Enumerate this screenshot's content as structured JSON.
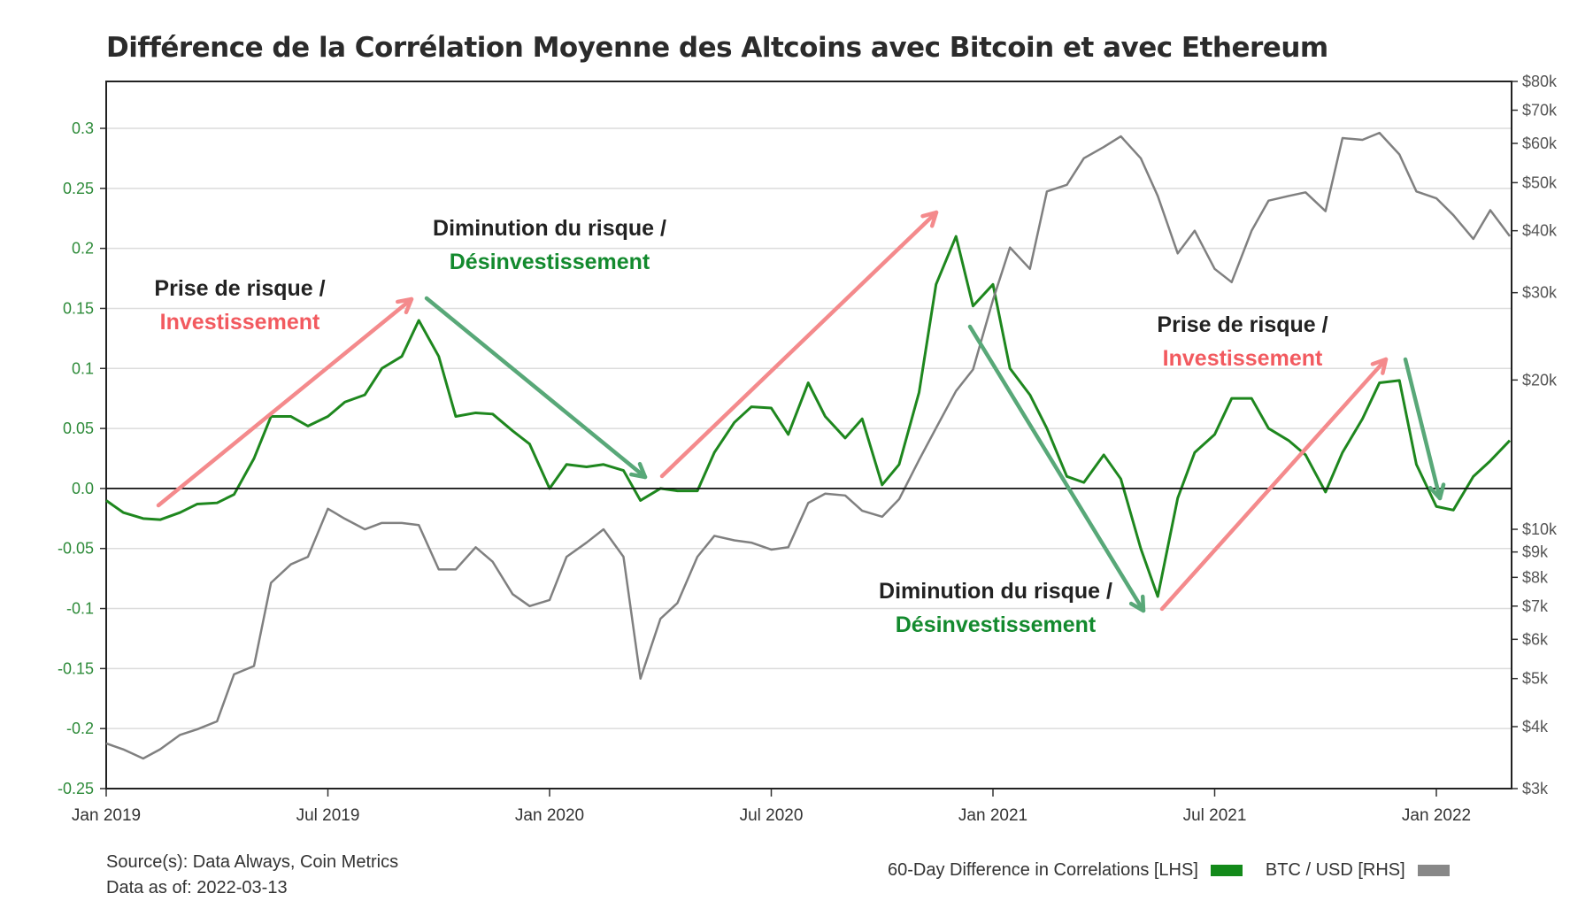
{
  "chart_data": {
    "type": "line",
    "title": "Différence de la Corrélation Moyenne des Altcoins avec Bitcoin et avec Ethereum",
    "x_ticks": [
      {
        "label": "Jan 2019",
        "date": "2019-01-01"
      },
      {
        "label": "Jul 2019",
        "date": "2019-07-01"
      },
      {
        "label": "Jan 2020",
        "date": "2020-01-01"
      },
      {
        "label": "Jul 2020",
        "date": "2020-07-01"
      },
      {
        "label": "Jan 2021",
        "date": "2021-01-01"
      },
      {
        "label": "Jul 2021",
        "date": "2021-07-01"
      },
      {
        "label": "Jan 2022",
        "date": "2022-01-01"
      }
    ],
    "xlim": [
      "2019-01-01",
      "2022-03-13"
    ],
    "y_left": {
      "lim": [
        -0.25,
        0.35
      ],
      "ticks": [
        0.3,
        0.25,
        0.2,
        0.15,
        0.1,
        0.05,
        0.0,
        -0.05,
        -0.1,
        -0.15,
        -0.2,
        -0.25
      ],
      "tick_labels": [
        "0.3",
        "0.25",
        "0.2",
        "0.15",
        "0.1",
        "0.05",
        "0.0",
        "-0.05",
        "-0.1",
        "-0.15",
        "-0.2",
        "-0.25"
      ],
      "color": "#2e8b3a",
      "grid": true
    },
    "y_right": {
      "scale": "log",
      "lim": [
        3000,
        80000
      ],
      "ticks": [
        80000,
        70000,
        60000,
        50000,
        40000,
        30000,
        20000,
        10000,
        9000,
        8000,
        7000,
        6000,
        5000,
        4000,
        3000
      ],
      "tick_labels": [
        "$80k",
        "$70k",
        "$60k",
        "$50k",
        "$40k",
        "$30k",
        "$20k",
        "$10k",
        "$9k",
        "$8k",
        "$7k",
        "$6k",
        "$5k",
        "$4k",
        "$3k"
      ],
      "color": "#555555"
    },
    "dates": [
      "2019-01-01",
      "2019-01-15",
      "2019-02-01",
      "2019-02-15",
      "2019-03-01",
      "2019-03-15",
      "2019-04-01",
      "2019-04-15",
      "2019-05-01",
      "2019-05-15",
      "2019-06-01",
      "2019-06-15",
      "2019-07-01",
      "2019-07-15",
      "2019-08-01",
      "2019-08-15",
      "2019-09-01",
      "2019-09-15",
      "2019-10-01",
      "2019-10-15",
      "2019-11-01",
      "2019-11-15",
      "2019-12-01",
      "2019-12-15",
      "2020-01-01",
      "2020-01-15",
      "2020-02-01",
      "2020-02-15",
      "2020-03-01",
      "2020-03-15",
      "2020-04-01",
      "2020-04-15",
      "2020-05-01",
      "2020-05-15",
      "2020-06-01",
      "2020-06-15",
      "2020-07-01",
      "2020-07-15",
      "2020-08-01",
      "2020-08-15",
      "2020-09-01",
      "2020-09-15",
      "2020-10-01",
      "2020-10-15",
      "2020-11-01",
      "2020-11-15",
      "2020-12-01",
      "2020-12-15",
      "2021-01-01",
      "2021-01-15",
      "2021-02-01",
      "2021-02-15",
      "2021-03-01",
      "2021-03-15",
      "2021-04-01",
      "2021-04-15",
      "2021-05-01",
      "2021-05-15",
      "2021-06-01",
      "2021-06-15",
      "2021-07-01",
      "2021-07-15",
      "2021-08-01",
      "2021-08-15",
      "2021-09-01",
      "2021-09-15",
      "2021-10-01",
      "2021-10-15",
      "2021-11-01",
      "2021-11-15",
      "2021-12-01",
      "2021-12-15",
      "2022-01-01",
      "2022-01-15",
      "2022-02-01",
      "2022-02-15",
      "2022-03-13"
    ],
    "series": [
      {
        "name": "60-Day Difference in Correlations [LHS]",
        "axis": "left",
        "color": "#1e871e",
        "values": [
          -0.01,
          -0.02,
          -0.025,
          -0.026,
          -0.02,
          -0.013,
          -0.012,
          -0.005,
          0.025,
          0.06,
          0.06,
          0.052,
          0.06,
          0.072,
          0.078,
          0.1,
          0.11,
          0.14,
          0.11,
          0.06,
          0.063,
          0.062,
          0.048,
          0.037,
          0.0,
          0.02,
          0.018,
          0.02,
          0.015,
          -0.01,
          0.0,
          -0.002,
          -0.002,
          0.03,
          0.055,
          0.068,
          0.067,
          0.045,
          0.088,
          0.06,
          0.042,
          0.058,
          0.003,
          0.02,
          0.08,
          0.17,
          0.21,
          0.152,
          0.17,
          0.1,
          0.078,
          0.05,
          0.01,
          0.005,
          0.028,
          0.008,
          -0.05,
          -0.09,
          -0.008,
          0.03,
          0.045,
          0.075,
          0.075,
          0.05,
          0.04,
          0.028,
          -0.003,
          0.03,
          0.058,
          0.088,
          0.09,
          0.02,
          -0.015,
          -0.018,
          0.01,
          0.023,
          0.04
        ]
      },
      {
        "name": "BTC / USD [RHS]",
        "axis": "right",
        "color": "#808080",
        "values": [
          3700,
          3600,
          3450,
          3600,
          3850,
          3950,
          4100,
          5100,
          5300,
          7800,
          8500,
          8800,
          11000,
          10500,
          10000,
          10300,
          10300,
          10200,
          8300,
          8300,
          9200,
          8600,
          7400,
          7000,
          7200,
          8800,
          9400,
          10000,
          8800,
          5000,
          6600,
          7100,
          8800,
          9700,
          9500,
          9400,
          9100,
          9200,
          11300,
          11800,
          11700,
          10900,
          10600,
          11500,
          13800,
          16000,
          19000,
          21000,
          29000,
          37000,
          33500,
          48000,
          49500,
          56000,
          59000,
          62000,
          56000,
          47000,
          36000,
          40000,
          33500,
          31500,
          40000,
          46000,
          47000,
          47800,
          43800,
          61500,
          61000,
          63000,
          57000,
          48000,
          46500,
          43000,
          38500,
          44000,
          39000
        ]
      }
    ],
    "legend": {
      "position": "bottom-right",
      "items": [
        "60-Day Difference in Correlations [LHS]",
        "BTC / USD [RHS]"
      ]
    },
    "annotations": [
      {
        "line1": "Prise de risque /",
        "line2": "Investissement",
        "line2_color": "#f25a5f"
      },
      {
        "line1": "Diminution du risque /",
        "line2": "Désinvestissement",
        "line2_color": "#138a2e"
      },
      {
        "line1": "Diminution du risque /",
        "line2": "Désinvestissement",
        "line2_color": "#138a2e"
      },
      {
        "line1": "Prise de risque /",
        "line2": "Investissement",
        "line2_color": "#f25a5f"
      }
    ],
    "arrow_colors": {
      "up": "#f48a8c",
      "down": "#58a878"
    }
  },
  "source": {
    "line1": "Source(s): Data Always, Coin Metrics",
    "line2": "Data as of: 2022-03-13"
  }
}
